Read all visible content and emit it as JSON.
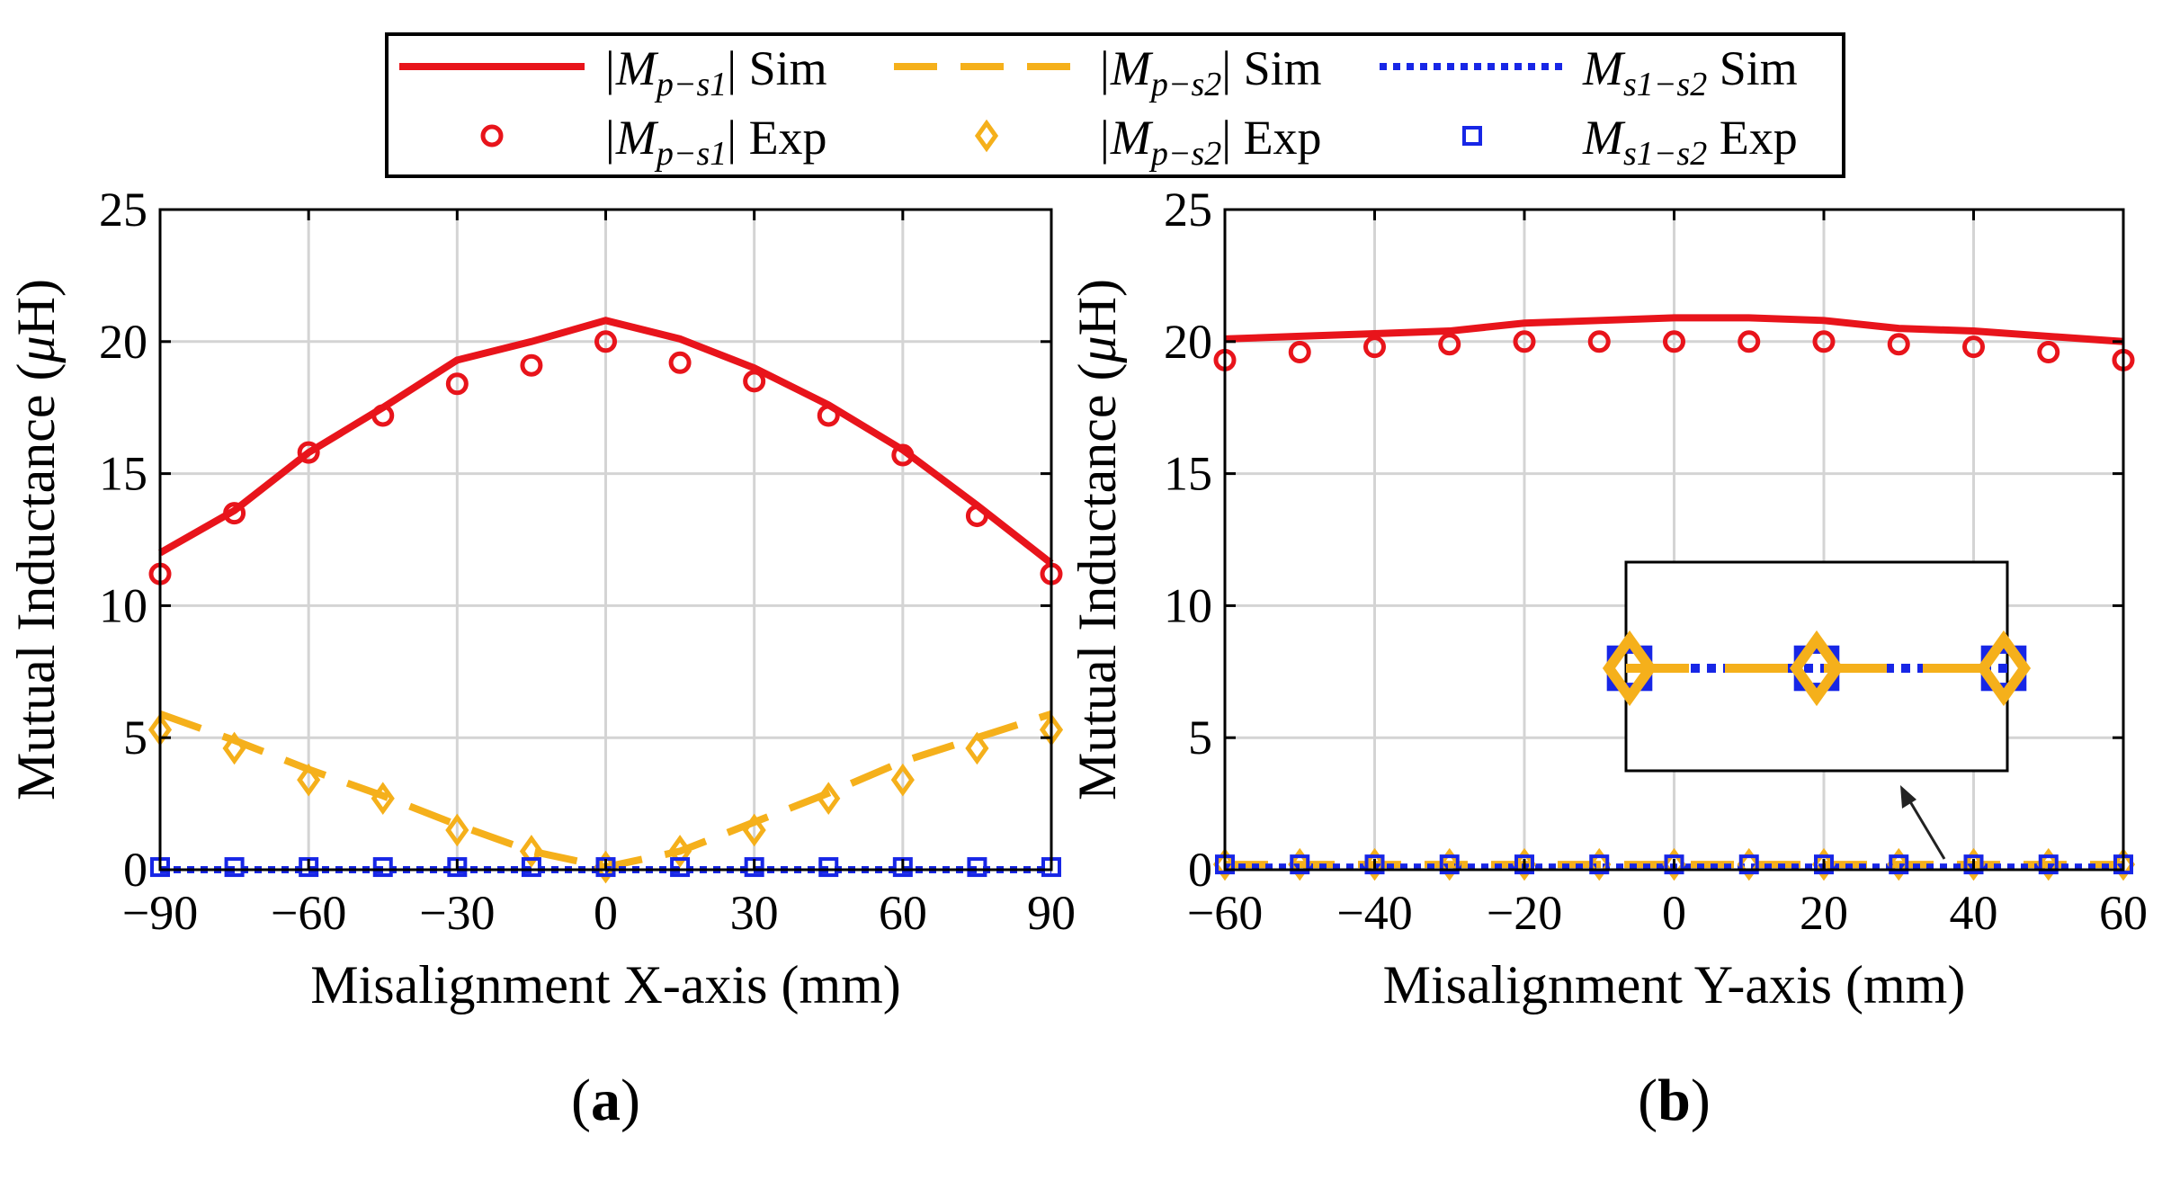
{
  "colors": {
    "red": "#e8141b",
    "orange": "#f5b01b",
    "blue": "#1726e6",
    "grid": "#d4d4d4",
    "axis": "#000000"
  },
  "legend": {
    "items": [
      {
        "label_main": "|M",
        "label_sub": "p−s1",
        "label_tail": "| Sim"
      },
      {
        "label_main": "|M",
        "label_sub": "p−s2",
        "label_tail": "| Sim"
      },
      {
        "label_main": "M",
        "label_sub": "s1−s2",
        "label_tail": " Sim"
      },
      {
        "label_main": "|M",
        "label_sub": "p−s1",
        "label_tail": "| Exp"
      },
      {
        "label_main": "|M",
        "label_sub": "p−s2",
        "label_tail": "| Exp"
      },
      {
        "label_main": "M",
        "label_sub": "s1−s2",
        "label_tail": " Exp"
      }
    ]
  },
  "chart_data": [
    {
      "type": "line",
      "panel_label": "(a)",
      "panel_letter": "a",
      "xlabel": "Misalignment X-axis (mm)",
      "ylabel_main": "Mutual Inductance (",
      "ylabel_mu": "μ",
      "ylabel_tail": "H)",
      "xlim": [
        -90,
        90
      ],
      "ylim": [
        0,
        25
      ],
      "xticks": [
        -90,
        -60,
        -30,
        0,
        30,
        60,
        90
      ],
      "xtick_labels": [
        "−90",
        "−60",
        "−30",
        "0",
        "30",
        "60",
        "90"
      ],
      "yticks": [
        0,
        5,
        10,
        15,
        20,
        25
      ],
      "ytick_labels": [
        "0",
        "5",
        "10",
        "15",
        "20",
        "25"
      ],
      "grid": true,
      "series": [
        {
          "name": "|Mp-s1| Sim",
          "style": "solid",
          "color_key": "red",
          "x": [
            -90,
            -75,
            -60,
            -45,
            -30,
            -15,
            0,
            15,
            30,
            45,
            60,
            75,
            90
          ],
          "y": [
            12.0,
            13.6,
            15.8,
            17.5,
            19.3,
            20.0,
            20.8,
            20.1,
            19.0,
            17.6,
            15.9,
            13.8,
            11.6
          ]
        },
        {
          "name": "|Mp-s2| Sim",
          "style": "dashed",
          "color_key": "orange",
          "x": [
            -90,
            -75,
            -60,
            -45,
            -30,
            -15,
            0,
            15,
            30,
            45,
            60,
            75,
            90
          ],
          "y": [
            5.9,
            4.9,
            3.8,
            2.8,
            1.7,
            0.7,
            0.1,
            0.7,
            1.8,
            2.9,
            4.1,
            5.0,
            5.9
          ]
        },
        {
          "name": "Ms1-s2 Sim",
          "style": "dotted",
          "color_key": "blue",
          "x": [
            -90,
            -75,
            -60,
            -45,
            -30,
            -15,
            0,
            15,
            30,
            45,
            60,
            75,
            90
          ],
          "y": [
            0.0,
            0.0,
            0.0,
            0.0,
            0.0,
            0.0,
            0.0,
            0.0,
            0.0,
            0.0,
            0.0,
            0.0,
            0.0
          ]
        },
        {
          "name": "|Mp-s1| Exp",
          "style": "circle",
          "color_key": "red",
          "x": [
            -90,
            -75,
            -60,
            -45,
            -30,
            -15,
            0,
            15,
            30,
            45,
            60,
            75,
            90
          ],
          "y": [
            11.2,
            13.5,
            15.8,
            17.2,
            18.4,
            19.1,
            20.0,
            19.2,
            18.5,
            17.2,
            15.7,
            13.4,
            11.2
          ]
        },
        {
          "name": "|Mp-s2| Exp",
          "style": "diamond",
          "color_key": "orange",
          "x": [
            -90,
            -75,
            -60,
            -45,
            -30,
            -15,
            0,
            15,
            30,
            45,
            60,
            75,
            90
          ],
          "y": [
            5.3,
            4.6,
            3.4,
            2.7,
            1.5,
            0.7,
            0.1,
            0.7,
            1.5,
            2.7,
            3.4,
            4.6,
            5.3
          ]
        },
        {
          "name": "Ms1-s2 Exp",
          "style": "square",
          "color_key": "blue",
          "x": [
            -90,
            -75,
            -60,
            -45,
            -30,
            -15,
            0,
            15,
            30,
            45,
            60,
            75,
            90
          ],
          "y": [
            0.1,
            0.1,
            0.1,
            0.1,
            0.1,
            0.1,
            0.1,
            0.1,
            0.1,
            0.1,
            0.1,
            0.1,
            0.1
          ]
        }
      ]
    },
    {
      "type": "line",
      "panel_label": "(b)",
      "panel_letter": "b",
      "xlabel": "Misalignment Y-axis (mm)",
      "ylabel_main": "Mutual Inductance (",
      "ylabel_mu": "μ",
      "ylabel_tail": "H)",
      "xlim": [
        -60,
        60
      ],
      "ylim": [
        0,
        25
      ],
      "xticks": [
        -60,
        -40,
        -20,
        0,
        20,
        40,
        60
      ],
      "xtick_labels": [
        "−60",
        "−40",
        "−20",
        "0",
        "20",
        "40",
        "60"
      ],
      "yticks": [
        0,
        5,
        10,
        15,
        20,
        25
      ],
      "ytick_labels": [
        "0",
        "5",
        "10",
        "15",
        "20",
        "25"
      ],
      "grid": true,
      "series": [
        {
          "name": "|Mp-s1| Sim",
          "style": "solid",
          "color_key": "red",
          "x": [
            -60,
            -50,
            -40,
            -30,
            -20,
            -10,
            0,
            10,
            20,
            30,
            40,
            50,
            60
          ],
          "y": [
            20.1,
            20.2,
            20.3,
            20.4,
            20.7,
            20.8,
            20.9,
            20.9,
            20.8,
            20.5,
            20.4,
            20.2,
            20.0
          ]
        },
        {
          "name": "|Mp-s2| Sim",
          "style": "dashed",
          "color_key": "orange",
          "x": [
            -60,
            -50,
            -40,
            -30,
            -20,
            -10,
            0,
            10,
            20,
            30,
            40,
            50,
            60
          ],
          "y": [
            0.2,
            0.2,
            0.2,
            0.2,
            0.2,
            0.2,
            0.2,
            0.2,
            0.2,
            0.2,
            0.2,
            0.2,
            0.2
          ]
        },
        {
          "name": "Ms1-s2 Sim",
          "style": "dotted",
          "color_key": "blue",
          "x": [
            -60,
            -50,
            -40,
            -30,
            -20,
            -10,
            0,
            10,
            20,
            30,
            40,
            50,
            60
          ],
          "y": [
            0.1,
            0.1,
            0.1,
            0.1,
            0.1,
            0.1,
            0.1,
            0.1,
            0.1,
            0.1,
            0.1,
            0.1,
            0.1
          ]
        },
        {
          "name": "|Mp-s1| Exp",
          "style": "circle",
          "color_key": "red",
          "x": [
            -60,
            -50,
            -40,
            -30,
            -20,
            -10,
            0,
            10,
            20,
            30,
            40,
            50,
            60
          ],
          "y": [
            19.3,
            19.6,
            19.8,
            19.9,
            20.0,
            20.0,
            20.0,
            20.0,
            20.0,
            19.9,
            19.8,
            19.6,
            19.3
          ]
        },
        {
          "name": "|Mp-s2| Exp",
          "style": "diamond",
          "color_key": "orange",
          "x": [
            -60,
            -50,
            -40,
            -30,
            -20,
            -10,
            0,
            10,
            20,
            30,
            40,
            50,
            60
          ],
          "y": [
            0.2,
            0.2,
            0.2,
            0.2,
            0.2,
            0.2,
            0.2,
            0.2,
            0.2,
            0.2,
            0.2,
            0.2,
            0.2
          ]
        },
        {
          "name": "Ms1-s2 Exp",
          "style": "square",
          "color_key": "blue",
          "x": [
            -60,
            -50,
            -40,
            -30,
            -20,
            -10,
            0,
            10,
            20,
            30,
            40,
            50,
            60
          ],
          "y": [
            0.2,
            0.2,
            0.2,
            0.2,
            0.2,
            0.2,
            0.2,
            0.2,
            0.2,
            0.2,
            0.2,
            0.2,
            0.2
          ]
        }
      ],
      "inset": {
        "description_points_x": [
          -20,
          0,
          20
        ],
        "has_arrow": true
      }
    }
  ]
}
